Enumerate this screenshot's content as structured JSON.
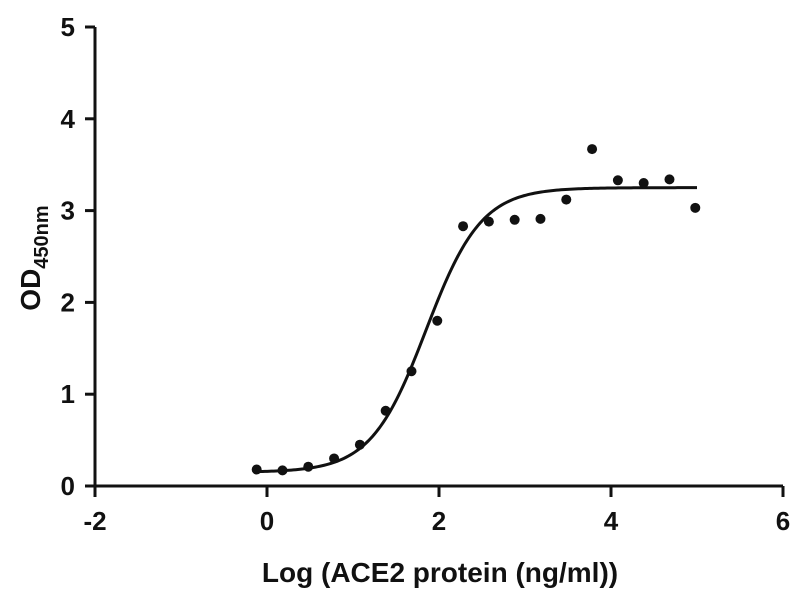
{
  "chart_data": {
    "type": "scatter",
    "xlabel": "Log (ACE2 protein (ng/ml))",
    "ylabel": {
      "main": "OD",
      "sub": "450nm"
    },
    "xlim": [
      -2,
      6
    ],
    "ylim": [
      0,
      5
    ],
    "xticks": [
      "-2",
      "0",
      "2",
      "4",
      "6"
    ],
    "yticks": [
      "0",
      "1",
      "2",
      "3",
      "4",
      "5"
    ],
    "grid": false,
    "series": [
      {
        "points": [
          {
            "x": -0.12,
            "y": 0.18
          },
          {
            "x": 0.18,
            "y": 0.17
          },
          {
            "x": 0.48,
            "y": 0.21
          },
          {
            "x": 0.78,
            "y": 0.3
          },
          {
            "x": 1.08,
            "y": 0.45
          },
          {
            "x": 1.38,
            "y": 0.82
          },
          {
            "x": 1.68,
            "y": 1.25
          },
          {
            "x": 1.98,
            "y": 1.8
          },
          {
            "x": 2.28,
            "y": 2.83
          },
          {
            "x": 2.58,
            "y": 2.88
          },
          {
            "x": 2.88,
            "y": 2.9
          },
          {
            "x": 3.18,
            "y": 2.91
          },
          {
            "x": 3.48,
            "y": 3.12
          },
          {
            "x": 3.78,
            "y": 3.67
          },
          {
            "x": 4.08,
            "y": 3.33
          },
          {
            "x": 4.38,
            "y": 3.3
          },
          {
            "x": 4.68,
            "y": 3.34
          },
          {
            "x": 4.98,
            "y": 3.03
          }
        ],
        "fit": {
          "bottom": 0.15,
          "top": 3.25,
          "logEC50": 1.85,
          "hillslope": 1.35,
          "range": [
            -0.1,
            5.0
          ]
        }
      }
    ]
  }
}
